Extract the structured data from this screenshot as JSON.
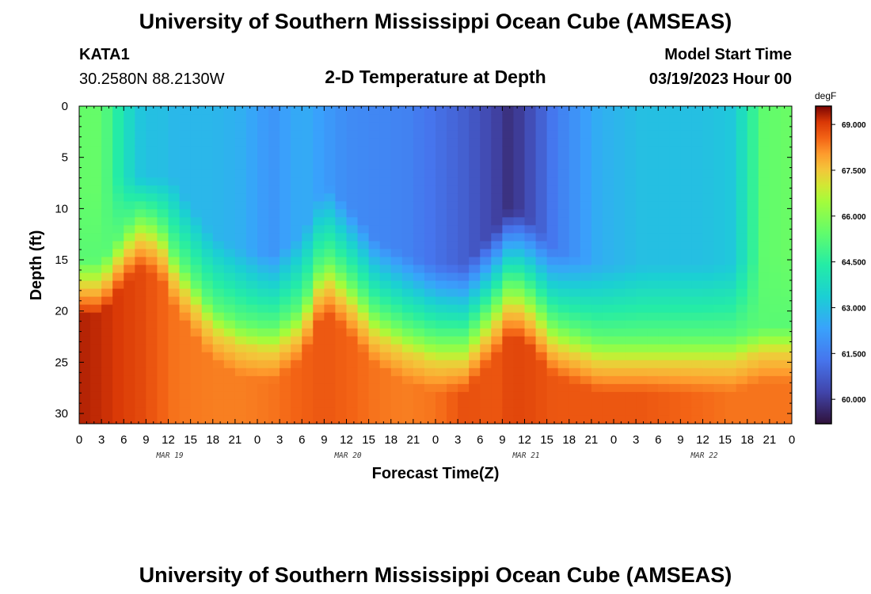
{
  "header": {
    "title": "University of Southern Mississippi Ocean Cube (AMSEAS)",
    "station": "KATA1",
    "coords": "30.2580N  88.2130W",
    "subtitle": "2-D Temperature at Depth",
    "model_label": "Model Start Time",
    "model_time": "03/19/2023 Hour 00"
  },
  "footer": {
    "title": "University of Southern Mississippi Ocean Cube (AMSEAS)"
  },
  "chart_data": {
    "type": "heatmap",
    "title": "2-D Temperature at Depth",
    "xlabel": "Forecast Time(Z)",
    "ylabel": "Depth (ft)",
    "xlim": [
      0,
      96
    ],
    "ylim": [
      31,
      0
    ],
    "x_ticks": [
      0,
      3,
      6,
      9,
      12,
      15,
      18,
      21,
      24,
      27,
      30,
      33,
      36,
      39,
      42,
      45,
      48,
      51,
      54,
      57,
      60,
      63,
      66,
      69,
      72,
      75,
      78,
      81,
      84,
      87,
      90,
      93,
      96
    ],
    "x_tick_labels": [
      "0",
      "3",
      "6",
      "9",
      "12",
      "15",
      "18",
      "21",
      "0",
      "3",
      "6",
      "9",
      "12",
      "15",
      "18",
      "21",
      "0",
      "3",
      "6",
      "9",
      "12",
      "15",
      "18",
      "21",
      "0",
      "3",
      "6",
      "9",
      "12",
      "15",
      "18",
      "21",
      "0"
    ],
    "date_labels": [
      {
        "hour": 12,
        "label": "MAR 19"
      },
      {
        "hour": 36,
        "label": "MAR 20"
      },
      {
        "hour": 60,
        "label": "MAR 21"
      },
      {
        "hour": 84,
        "label": "MAR 22"
      }
    ],
    "y_ticks": [
      0,
      5,
      10,
      15,
      20,
      25,
      30
    ],
    "y_tick_labels": [
      "0",
      "5",
      "10",
      "15",
      "20",
      "25",
      "30"
    ],
    "colorbar": {
      "unit": "degF",
      "range": [
        59.2,
        69.6
      ],
      "ticks": [
        69.0,
        67.5,
        66.0,
        64.5,
        63.0,
        61.5,
        60.0
      ],
      "tick_labels": [
        "69.000",
        "67.500",
        "66.000",
        "64.500",
        "63.000",
        "61.500",
        "60.000"
      ]
    },
    "field_description": "Warm stratified bottom layer (~68-69 degF below ~22 ft), cool surface layer (~61-63 degF), with warm upwelling domes near hours 9, 33 and 58 and a minimum near hour 58 at the surface.",
    "profile_hours": [
      0,
      3,
      6,
      8,
      9,
      11,
      13,
      18,
      22,
      26,
      30,
      33,
      36,
      40,
      44,
      48,
      52,
      56,
      58,
      60,
      64,
      70,
      76,
      84,
      88,
      90,
      92,
      96
    ],
    "surface_layer_temps": [
      65.5,
      65.5,
      64.0,
      63.2,
      63.0,
      63.0,
      62.8,
      62.8,
      62.6,
      62.0,
      62.6,
      62.2,
      61.8,
      61.7,
      61.6,
      61.2,
      60.8,
      60.2,
      59.8,
      60.2,
      61.4,
      62.6,
      63.0,
      63.0,
      63.2,
      64.2,
      65.4,
      65.6
    ],
    "warm_layer_top_depth_ft": [
      15.0,
      15.0,
      12.0,
      10.5,
      10.5,
      11.5,
      14.5,
      19.5,
      21.0,
      21.5,
      19.5,
      14.5,
      16.5,
      20.0,
      21.5,
      22.5,
      22.5,
      19.0,
      17.0,
      17.5,
      21.0,
      22.5,
      22.5,
      22.5,
      22.5,
      22.0,
      21.5,
      21.5
    ],
    "bottom_temps": [
      69.3,
      69.2,
      69.0,
      68.9,
      68.8,
      68.6,
      68.4,
      68.3,
      68.3,
      68.4,
      68.6,
      68.7,
      68.6,
      68.4,
      68.3,
      68.4,
      68.8,
      68.7,
      68.9,
      68.9,
      68.7,
      68.7,
      68.7,
      68.5,
      68.4,
      68.4,
      68.4,
      68.4
    ],
    "mid_layer_temp": 65.3
  }
}
